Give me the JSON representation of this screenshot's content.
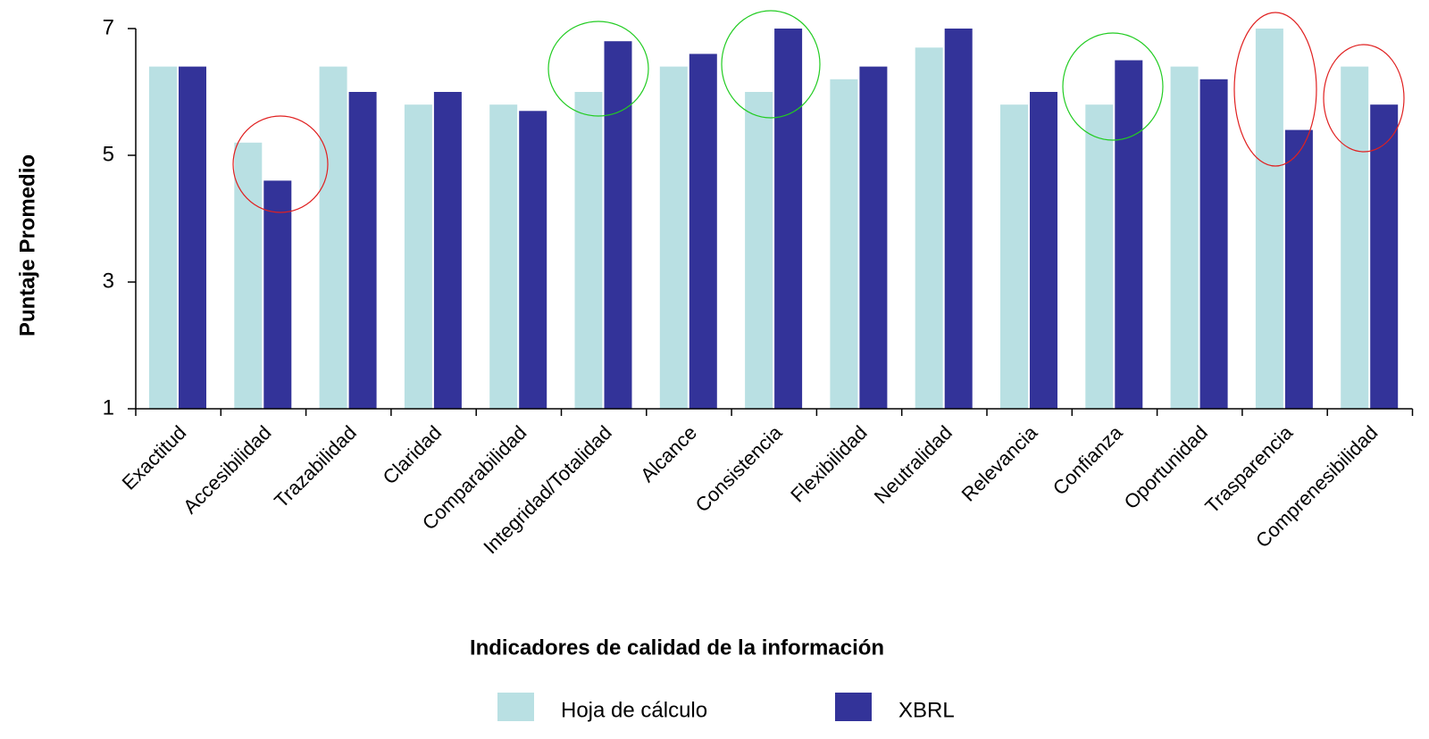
{
  "chart_data": {
    "type": "bar",
    "x_label": "Indicadores de calidad de la información",
    "y_label": "Puntaje Promedio",
    "categories": [
      "Exactitud",
      "Accesibilidad",
      "Trazabilidad",
      "Claridad",
      "Comparabilidad",
      "Integridad/Totalidad",
      "Alcance",
      "Consistencia",
      "Flexibilidad",
      "Neutralidad",
      "Relevancia",
      "Confianza",
      "Oportunidad",
      "Trasparencia",
      "Comprenesibilidad"
    ],
    "series": [
      {
        "name": "Hoja de cálculo",
        "color": "#b9e0e3",
        "values": [
          6.4,
          5.2,
          6.4,
          5.8,
          5.8,
          6.0,
          6.4,
          6.0,
          6.2,
          6.7,
          5.8,
          5.8,
          6.4,
          7.0,
          6.4
        ]
      },
      {
        "name": "XBRL",
        "color": "#333399",
        "values": [
          6.4,
          4.6,
          6.0,
          6.0,
          5.7,
          6.8,
          6.6,
          7.0,
          6.4,
          7.0,
          6.0,
          6.5,
          6.2,
          5.4,
          5.8
        ]
      }
    ],
    "ylim": [
      1,
      7
    ],
    "yticks": [
      1,
      3,
      5,
      7
    ],
    "grid": false,
    "legend": "bottom"
  }
}
